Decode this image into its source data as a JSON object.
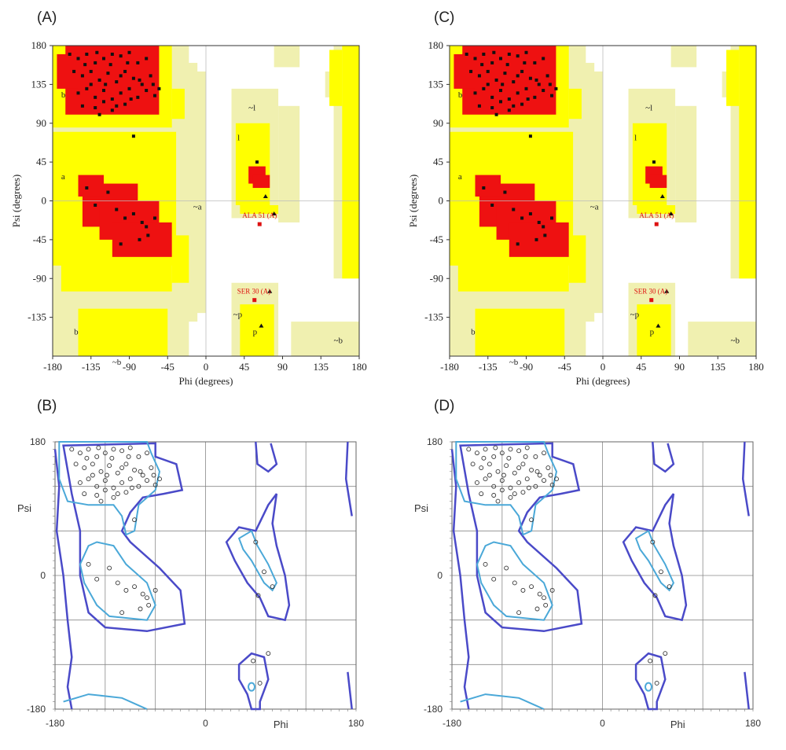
{
  "panels": [
    {
      "id": "A",
      "label": "(A)",
      "kind": "procheck",
      "outliers": [
        "ALA 51 (A)",
        "SER 30 (A)"
      ]
    },
    {
      "id": "B",
      "label": "(B)",
      "kind": "contour"
    },
    {
      "id": "C",
      "label": "(C)",
      "kind": "procheck",
      "outliers": [
        "ALA 51 (A)",
        "SER 30 (A)"
      ]
    },
    {
      "id": "D",
      "label": "(D)",
      "kind": "contour"
    }
  ],
  "procheck_axes": {
    "xlabel": "Phi (degrees)",
    "ylabel": "Psi (degrees)",
    "xticks": [
      "-180",
      "-135",
      "-90",
      "-45",
      "0",
      "45",
      "90",
      "135",
      "180"
    ],
    "yticks": [
      "180",
      "135",
      "90",
      "45",
      "0",
      "-45",
      "-90",
      "-135"
    ],
    "region_labels": [
      "b",
      "a",
      "l",
      "~b",
      "~l",
      "~a",
      "~p",
      "p",
      "b",
      "~b"
    ]
  },
  "contour_axes": {
    "xlabel": "Phi",
    "ylabel": "Psi",
    "xticks": [
      "-180",
      "0",
      "180"
    ],
    "yticks": [
      "180",
      "0",
      "-180"
    ]
  },
  "colors": {
    "most_favoured": "#ee1111",
    "additional_allowed": "#ffff00",
    "generously_allowed": "#f0f0b0",
    "disallowed": "#ffffff",
    "inner_contour": "#4aa8d8",
    "outer_contour": "#4a4ac8"
  },
  "chart_data": {
    "type": "scatter",
    "xlim": [
      -180,
      180
    ],
    "ylim": [
      -180,
      180
    ],
    "points": [
      [
        -160,
        170
      ],
      [
        -150,
        165
      ],
      [
        -140,
        170
      ],
      [
        -130,
        160
      ],
      [
        -120,
        165
      ],
      [
        -110,
        170
      ],
      [
        -100,
        168
      ],
      [
        -90,
        172
      ],
      [
        -80,
        160
      ],
      [
        -70,
        165
      ],
      [
        -155,
        150
      ],
      [
        -145,
        145
      ],
      [
        -135,
        150
      ],
      [
        -125,
        140
      ],
      [
        -115,
        148
      ],
      [
        -105,
        138
      ],
      [
        -95,
        150
      ],
      [
        -85,
        142
      ],
      [
        -75,
        135
      ],
      [
        -65,
        145
      ],
      [
        -150,
        125
      ],
      [
        -140,
        130
      ],
      [
        -130,
        120
      ],
      [
        -120,
        128
      ],
      [
        -110,
        118
      ],
      [
        -100,
        125
      ],
      [
        -90,
        130
      ],
      [
        -80,
        120
      ],
      [
        -70,
        128
      ],
      [
        -60,
        122
      ],
      [
        -145,
        110
      ],
      [
        -130,
        108
      ],
      [
        -120,
        115
      ],
      [
        -105,
        110
      ],
      [
        -95,
        112
      ],
      [
        -125,
        100
      ],
      [
        -110,
        105
      ],
      [
        -135,
        135
      ],
      [
        -118,
        135
      ],
      [
        -100,
        145
      ],
      [
        -88,
        118
      ],
      [
        -78,
        140
      ],
      [
        -62,
        135
      ],
      [
        -55,
        130
      ],
      [
        -92,
        160
      ],
      [
        -112,
        158
      ],
      [
        -128,
        172
      ],
      [
        -142,
        158
      ],
      [
        -85,
        75
      ],
      [
        -140,
        15
      ],
      [
        -130,
        -5
      ],
      [
        -115,
        10
      ],
      [
        -105,
        -10
      ],
      [
        -95,
        -20
      ],
      [
        -85,
        -15
      ],
      [
        -75,
        -25
      ],
      [
        -70,
        -30
      ],
      [
        -68,
        -40
      ],
      [
        -100,
        -50
      ],
      [
        -78,
        -45
      ],
      [
        -60,
        -20
      ],
      [
        60,
        45
      ],
      [
        80,
        -15
      ],
      [
        70,
        5
      ],
      [
        65,
        -145
      ],
      [
        75,
        -105
      ]
    ],
    "outliers": [
      {
        "label": "ALA 51 (A)",
        "x": 63,
        "y": -27
      },
      {
        "label": "SER 30 (A)",
        "x": 57,
        "y": -115
      }
    ]
  }
}
